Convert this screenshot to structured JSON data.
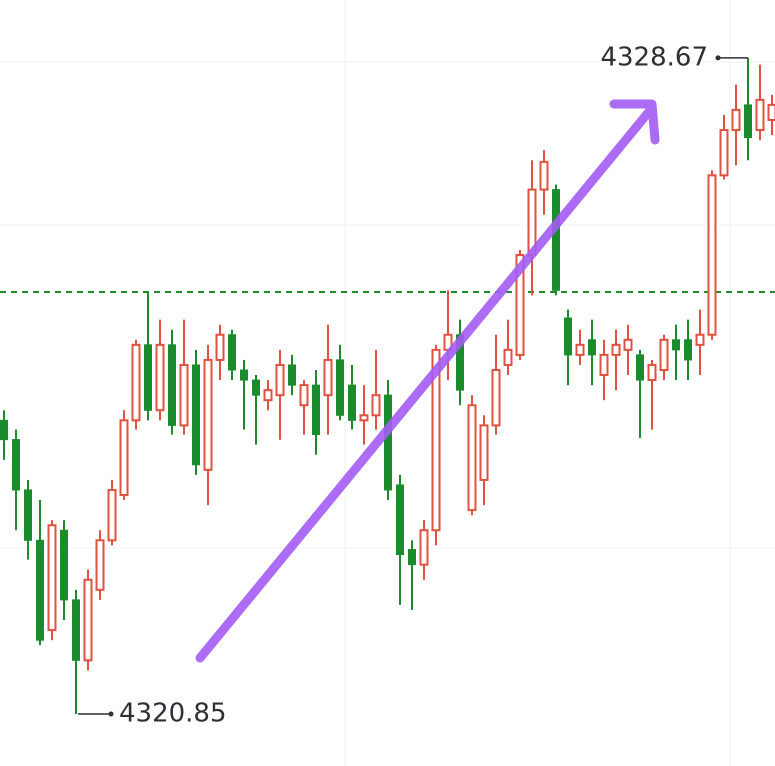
{
  "chart_data": {
    "type": "candlestick",
    "open": [
      4324.35,
      4324.12,
      4323.52,
      4322.92,
      4321.85,
      4323.04,
      4322.21,
      4321.49,
      4322.33,
      4322.92,
      4323.46,
      4324.35,
      4325.25,
      4324.47,
      4325.25,
      4324.29,
      4325.01,
      4323.76,
      4325.07,
      4325.37,
      4324.95,
      4324.83,
      4324.59,
      4324.65,
      4325.01,
      4324.53,
      4324.77,
      4324.65,
      4325.07,
      4324.77,
      4324.35,
      4324.41,
      4324.65,
      4323.58,
      4322.81,
      4322.63,
      4323.04,
      4325.19,
      4325.37,
      4323.28,
      4323.64,
      4324.29,
      4325.01,
      4325.13,
      4326.32,
      4327.1,
      4327.1,
      4325.57,
      4325.13,
      4325.31,
      4324.89,
      4325.13,
      4325.19,
      4325.13,
      4324.83,
      4324.95,
      4325.31,
      4325.31,
      4325.25,
      4325.37,
      4327.27,
      4327.81,
      4328.11,
      4327.81,
      4327.93
    ],
    "high": [
      4324.47,
      4324.24,
      4323.64,
      4323.4,
      4323.16,
      4323.16,
      4322.33,
      4322.57,
      4323.04,
      4323.64,
      4324.47,
      4325.31,
      4325.88,
      4325.55,
      4325.43,
      4325.55,
      4325.19,
      4325.25,
      4325.49,
      4325.43,
      4325.07,
      4324.89,
      4324.83,
      4325.19,
      4325.13,
      4324.83,
      4324.95,
      4325.49,
      4325.25,
      4325.01,
      4324.77,
      4325.19,
      4324.83,
      4323.7,
      4322.92,
      4323.16,
      4325.25,
      4325.9,
      4325.55,
      4324.65,
      4324.41,
      4325.37,
      4325.55,
      4326.38,
      4327.45,
      4327.57,
      4327.16,
      4325.67,
      4325.43,
      4325.55,
      4325.31,
      4325.43,
      4325.49,
      4325.19,
      4325.07,
      4325.37,
      4325.49,
      4325.55,
      4325.67,
      4327.33,
      4327.99,
      4328.35,
      4328.67,
      4328.59,
      4328.23
    ],
    "low": [
      4323.88,
      4323.04,
      4322.69,
      4321.67,
      4321.73,
      4321.97,
      4320.85,
      4321.37,
      4322.21,
      4322.86,
      4323.4,
      4324.24,
      4324.35,
      4324.35,
      4324.18,
      4324.18,
      4323.7,
      4323.34,
      4324.83,
      4324.83,
      4324.24,
      4324.06,
      4324.47,
      4324.12,
      4324.65,
      4324.18,
      4323.94,
      4324.18,
      4324.35,
      4324.24,
      4324.06,
      4324.24,
      4323.4,
      4322.15,
      4322.09,
      4322.45,
      4322.86,
      4324.83,
      4324.53,
      4323.22,
      4323.34,
      4324.18,
      4324.89,
      4325.07,
      4325.84,
      4326.8,
      4325.84,
      4324.77,
      4325.01,
      4324.77,
      4324.59,
      4324.71,
      4324.89,
      4324.14,
      4324.24,
      4324.83,
      4324.83,
      4324.83,
      4324.89,
      4325.31,
      4327.22,
      4327.39,
      4327.45,
      4327.69,
      4327.75
    ],
    "close": [
      4324.12,
      4323.52,
      4322.92,
      4321.73,
      4323.1,
      4322.21,
      4321.49,
      4322.45,
      4322.92,
      4323.52,
      4324.35,
      4325.25,
      4324.47,
      4325.25,
      4324.29,
      4325.01,
      4323.82,
      4325.07,
      4325.37,
      4324.95,
      4324.83,
      4324.65,
      4324.71,
      4325.01,
      4324.77,
      4324.77,
      4324.18,
      4325.07,
      4324.41,
      4324.35,
      4324.41,
      4324.65,
      4323.52,
      4322.75,
      4322.63,
      4323.04,
      4325.19,
      4325.37,
      4324.71,
      4324.53,
      4324.29,
      4324.95,
      4325.19,
      4326.32,
      4327.1,
      4327.43,
      4325.9,
      4325.13,
      4325.25,
      4325.13,
      4325.13,
      4325.25,
      4325.31,
      4324.83,
      4325.01,
      4325.31,
      4325.19,
      4325.07,
      4325.37,
      4327.27,
      4327.81,
      4328.05,
      4327.72,
      4328.17,
      4328.11
    ],
    "up_color": "#e0523f",
    "down_color": "#1a8c2e",
    "ylim": [
      4320.23,
      4329.36
    ],
    "reference_line": {
      "value": 4325.88,
      "color": "#1f8a2a"
    },
    "annotations": [
      {
        "text": "4328.67",
        "value": 4328.67,
        "index": 62
      },
      {
        "text": "4320.85",
        "value": 4320.85,
        "index": 6
      }
    ]
  }
}
